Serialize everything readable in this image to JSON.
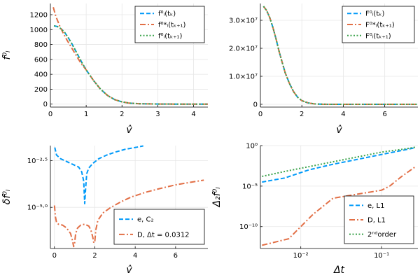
{
  "chart_data": [
    {
      "id": "top-left",
      "type": "line",
      "xlabel": "v̂",
      "ylabel": "f⁰ₗ",
      "xlim": [
        0,
        4.4
      ],
      "ylim": [
        -40,
        1350
      ],
      "xscale": "linear",
      "yscale": "linear",
      "xticks": [
        0,
        1,
        2,
        3,
        4
      ],
      "xtick_labels": [
        "0",
        "1",
        "2",
        "3",
        "4"
      ],
      "yticks": [
        0,
        200,
        400,
        600,
        800,
        1000,
        1200
      ],
      "ytick_labels": [
        "0",
        "200",
        "400",
        "600",
        "800",
        "1000",
        "1200"
      ],
      "legend_position": "top-right",
      "series": [
        {
          "name": "f⁰ₗ(tₖ)",
          "color": "#009af9",
          "dash": "dashed",
          "x": [
            0.1,
            0.2,
            0.3,
            0.4,
            0.5,
            0.6,
            0.7,
            0.8,
            0.9,
            1.0,
            1.2,
            1.4,
            1.6,
            1.8,
            2.0,
            2.2,
            2.5,
            3.0,
            3.5,
            4.0,
            4.4
          ],
          "y": [
            1050,
            1040,
            1010,
            960,
            890,
            810,
            720,
            630,
            540,
            460,
            320,
            200,
            115,
            60,
            30,
            14,
            5,
            1,
            0,
            0,
            0
          ]
        },
        {
          "name": "f⁰*ₗ(tₖ₊₁)",
          "color": "#e26f46",
          "dash": "dashdot",
          "x": [
            0.08,
            0.15,
            0.25,
            0.35,
            0.45,
            0.55,
            0.65,
            0.75,
            0.85,
            1.0,
            1.2,
            1.4,
            1.6,
            1.8,
            2.0,
            2.2,
            2.5,
            3.0,
            3.5,
            4.0,
            4.4
          ],
          "y": [
            1300,
            1180,
            1060,
            960,
            870,
            790,
            710,
            630,
            550,
            460,
            320,
            200,
            115,
            60,
            30,
            14,
            5,
            1,
            0,
            0,
            0
          ]
        },
        {
          "name": "f⁰ₗ(tₖ₊₁)",
          "color": "#3da44d",
          "dash": "dotted",
          "x": [
            0.1,
            0.2,
            0.3,
            0.4,
            0.5,
            0.6,
            0.7,
            0.8,
            0.9,
            1.0,
            1.2,
            1.4,
            1.6,
            1.8,
            2.0,
            2.2,
            2.5,
            3.0,
            3.5,
            4.0,
            4.4
          ],
          "y": [
            1050,
            1040,
            1010,
            960,
            890,
            810,
            720,
            630,
            540,
            460,
            320,
            200,
            115,
            60,
            30,
            14,
            5,
            1,
            0,
            0,
            0
          ]
        }
      ]
    },
    {
      "id": "top-right",
      "type": "line",
      "xlabel": "v̂",
      "ylabel": "",
      "xlim": [
        0,
        7.6
      ],
      "ylim": [
        -1000000,
        36000000
      ],
      "xscale": "linear",
      "yscale": "linear",
      "xticks": [
        0,
        2,
        4,
        6
      ],
      "xtick_labels": [
        "0",
        "2",
        "4",
        "6"
      ],
      "yticks": [
        0,
        10000000,
        20000000,
        30000000
      ],
      "ytick_labels": [
        "0",
        "1.0×10⁷",
        "2.0×10⁷",
        "3.0×10⁷"
      ],
      "legend_position": "top-right",
      "series": [
        {
          "name": "F⁰ₗ(tₖ)",
          "color": "#009af9",
          "dash": "dashed",
          "x": [
            0.15,
            0.3,
            0.45,
            0.6,
            0.75,
            0.9,
            1.05,
            1.2,
            1.4,
            1.6,
            1.8,
            2.0,
            2.3,
            2.6,
            3.0,
            3.5,
            4.0,
            5.0,
            6.0,
            7.0,
            7.6
          ],
          "y": [
            35000000,
            33500000,
            31000000,
            27500000,
            23500000,
            19000000,
            15000000,
            11200000,
            7500000,
            4500000,
            2500000,
            1300000,
            500000,
            150000,
            30000,
            0,
            0,
            0,
            0,
            0,
            0
          ]
        },
        {
          "name": "F⁰*ₗ(tₖ₊₁)",
          "color": "#e26f46",
          "dash": "dashdot",
          "x": [
            0.15,
            0.3,
            0.45,
            0.6,
            0.75,
            0.9,
            1.05,
            1.2,
            1.4,
            1.6,
            1.8,
            2.0,
            2.3,
            2.6,
            3.0,
            3.5,
            4.0,
            5.0,
            6.0,
            7.0,
            7.6
          ],
          "y": [
            35000000,
            33500000,
            31000000,
            27500000,
            23500000,
            19000000,
            15000000,
            11200000,
            7500000,
            4500000,
            2500000,
            1300000,
            500000,
            150000,
            30000,
            0,
            0,
            0,
            0,
            0,
            0
          ]
        },
        {
          "name": "F⁰ₗ(tₖ₊₁)",
          "color": "#3da44d",
          "dash": "dotted",
          "x": [
            0.15,
            0.3,
            0.45,
            0.6,
            0.75,
            0.9,
            1.05,
            1.2,
            1.4,
            1.6,
            1.8,
            2.0,
            2.3,
            2.6,
            3.0,
            3.5,
            4.0,
            5.0,
            6.0,
            7.0,
            7.6
          ],
          "y": [
            35000000,
            33500000,
            31000000,
            27500000,
            23500000,
            19000000,
            15000000,
            11200000,
            7500000,
            4500000,
            2500000,
            1300000,
            500000,
            150000,
            30000,
            0,
            0,
            0,
            0,
            0,
            0
          ]
        }
      ]
    },
    {
      "id": "bottom-left",
      "type": "line",
      "xlabel": "v̂",
      "ylabel": "δf⁰ₗ",
      "xlim": [
        -0.2,
        7.6
      ],
      "ylim": [
        -7.2,
        -1.7
      ],
      "xscale": "linear",
      "yscale": "log10",
      "xticks": [
        0,
        2,
        4,
        6
      ],
      "xtick_labels": [
        "0",
        "2",
        "4",
        "6"
      ],
      "yticks": [
        -2.5,
        -5.0
      ],
      "ytick_labels": [
        "10⁻²·⁵",
        "10⁻⁵·⁰"
      ],
      "legend_position": "bottom-right",
      "series": [
        {
          "name": "e, C₂",
          "color": "#009af9",
          "dash": "dashed",
          "x": [
            0.02,
            0.06,
            0.1,
            0.3,
            0.6,
            0.9,
            1.2,
            1.35,
            1.45,
            1.5,
            1.55,
            1.6,
            1.7,
            1.9,
            2.2,
            2.6,
            3.0,
            3.5,
            4.0,
            4.4
          ],
          "y": [
            -1.8,
            -2.0,
            -2.2,
            -2.4,
            -2.55,
            -2.7,
            -2.85,
            -3.1,
            -3.6,
            -4.8,
            -3.9,
            -3.2,
            -2.9,
            -2.65,
            -2.4,
            -2.2,
            -2.05,
            -1.9,
            -1.8,
            -1.72
          ]
        },
        {
          "name": "D, Δt = 0.0312",
          "color": "#e26f46",
          "dash": "dashdot",
          "x": [
            0.0,
            0.05,
            0.1,
            0.2,
            0.4,
            0.6,
            0.8,
            0.9,
            0.95,
            1.0,
            1.05,
            1.15,
            1.3,
            1.5,
            1.7,
            1.8,
            1.9,
            1.95,
            2.0,
            2.05,
            2.15,
            2.4,
            2.8,
            3.3,
            3.8,
            4.5,
            5.2,
            6.0,
            6.8,
            7.4
          ],
          "y": [
            -4.9,
            -5.5,
            -5.8,
            -5.9,
            -5.95,
            -6.1,
            -6.4,
            -6.8,
            -7.1,
            -6.9,
            -6.4,
            -6.1,
            -5.95,
            -5.9,
            -6.0,
            -6.2,
            -6.6,
            -6.9,
            -6.8,
            -6.2,
            -5.7,
            -5.3,
            -5.0,
            -4.7,
            -4.45,
            -4.2,
            -4.0,
            -3.8,
            -3.65,
            -3.55
          ]
        }
      ]
    },
    {
      "id": "bottom-right",
      "type": "line",
      "xlabel": "Δt",
      "ylabel": "Δ₂f⁰ₗ",
      "xlim": [
        -2.5,
        -0.55
      ],
      "ylim": [
        -12.7,
        0
      ],
      "xscale": "log10",
      "yscale": "log10",
      "xticks": [
        -2,
        -1
      ],
      "xtick_labels": [
        "10⁻²",
        "10⁻¹"
      ],
      "yticks": [
        0,
        -5,
        -10
      ],
      "ytick_labels": [
        "10⁰",
        "10⁻⁵",
        "10⁻¹⁰"
      ],
      "legend_position": "bottom-right",
      "series": [
        {
          "name": "e, L1",
          "color": "#009af9",
          "dash": "dashed",
          "x": [
            -2.48,
            -2.2,
            -1.9,
            -1.6,
            -1.3,
            -1.0,
            -0.7,
            -0.58
          ],
          "y": [
            -4.5,
            -4.0,
            -3.0,
            -2.3,
            -1.7,
            -1.1,
            -0.5,
            -0.25
          ]
        },
        {
          "name": "D, L1",
          "color": "#e26f46",
          "dash": "dashdot",
          "x": [
            -2.48,
            -2.15,
            -1.85,
            -1.6,
            -1.3,
            -1.0,
            -0.9,
            -0.75,
            -0.58
          ],
          "y": [
            -12.3,
            -11.5,
            -8.5,
            -6.5,
            -6.0,
            -5.5,
            -5.0,
            -3.8,
            -2.6
          ]
        },
        {
          "name": "2ⁿᵈorder",
          "color": "#3da44d",
          "dash": "dotted",
          "x": [
            -2.48,
            -2.2,
            -1.9,
            -1.6,
            -1.3,
            -1.0,
            -0.7,
            -0.58
          ],
          "y": [
            -3.8,
            -3.2,
            -2.6,
            -2.0,
            -1.4,
            -0.8,
            -0.4,
            -0.2
          ]
        }
      ]
    }
  ]
}
